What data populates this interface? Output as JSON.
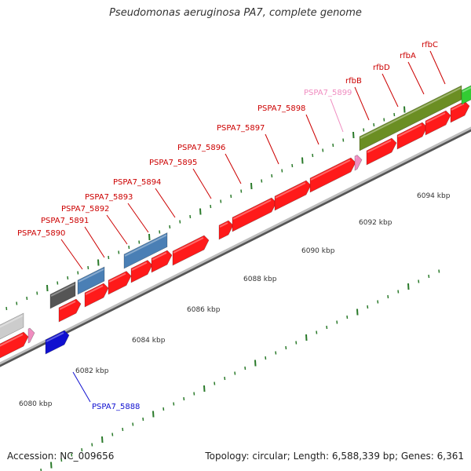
{
  "title": "Pseudomonas aeruginosa PA7, complete genome",
  "footer": {
    "accession": "Accession: NC_009656",
    "topology": "Topology: circular; Length: 6,588,339 bp; Genes: 6,361"
  },
  "colors": {
    "red": "#ff1a1a",
    "steel_blue": "#4a7fb5",
    "dark_gray": "#555555",
    "light_gray": "#cccccc",
    "pink": "#f08cc0",
    "blue": "#1010d0",
    "olive": "#6b8e23",
    "green": "#33cc33",
    "tick": "#2a7a2a",
    "axis": "#888888"
  },
  "scale_labels": [
    "6080 kbp",
    "6082 kbp",
    "6084 kbp",
    "6086 kbp",
    "6088 kbp",
    "6090 kbp",
    "6092 kbp",
    "6094 kbp"
  ],
  "gene_labels": [
    {
      "name": "PSPA7_5888",
      "color": "#1010d0"
    },
    {
      "name": "PSPA7_5890",
      "color": "#cc0000"
    },
    {
      "name": "PSPA7_5891",
      "color": "#cc0000"
    },
    {
      "name": "PSPA7_5892",
      "color": "#cc0000"
    },
    {
      "name": "PSPA7_5893",
      "color": "#cc0000"
    },
    {
      "name": "PSPA7_5894",
      "color": "#cc0000"
    },
    {
      "name": "PSPA7_5895",
      "color": "#cc0000"
    },
    {
      "name": "PSPA7_5896",
      "color": "#cc0000"
    },
    {
      "name": "PSPA7_5897",
      "color": "#cc0000"
    },
    {
      "name": "PSPA7_5898",
      "color": "#cc0000"
    },
    {
      "name": "PSPA7_5899",
      "color": "#f08cc0"
    },
    {
      "name": "rfbB",
      "color": "#cc0000"
    },
    {
      "name": "rfbD",
      "color": "#cc0000"
    },
    {
      "name": "rfbA",
      "color": "#cc0000"
    },
    {
      "name": "rfbC",
      "color": "#cc0000"
    }
  ]
}
